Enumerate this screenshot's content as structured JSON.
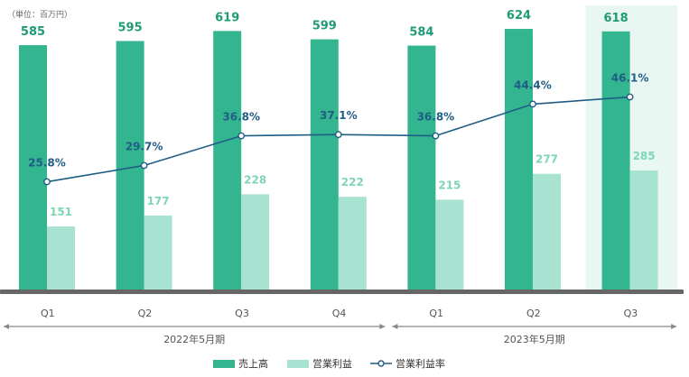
{
  "unit_note": "（単位：百万円）",
  "chart_data": {
    "type": "bar",
    "categories": [
      "Q1",
      "Q2",
      "Q3",
      "Q4",
      "Q1",
      "Q2",
      "Q3"
    ],
    "periods": [
      {
        "label": "2022年5月期",
        "start": 0,
        "end": 3
      },
      {
        "label": "2023年5月期",
        "start": 4,
        "end": 6
      }
    ],
    "highlight_index": 6,
    "series": [
      {
        "name": "売上高",
        "kind": "bar",
        "color": "#33b58f",
        "values": [
          585,
          595,
          619,
          599,
          584,
          624,
          618
        ]
      },
      {
        "name": "営業利益",
        "kind": "bar",
        "color": "#a8e2d1",
        "values": [
          151,
          177,
          228,
          222,
          215,
          277,
          285
        ]
      },
      {
        "name": "営業利益率",
        "kind": "line",
        "color": "#1f5d86",
        "values": [
          25.8,
          29.7,
          36.8,
          37.1,
          36.8,
          44.4,
          46.1
        ],
        "labels": [
          "25.8%",
          "29.7%",
          "36.8%",
          "37.1%",
          "36.8%",
          "44.4%",
          "46.1%"
        ]
      }
    ],
    "ylim": [
      0,
      650
    ],
    "rate_ylim": [
      0,
      65
    ],
    "highlight_color": "#e8f7f1",
    "axis_color": "#666666",
    "grid": false,
    "legend_position": "bottom-center"
  }
}
